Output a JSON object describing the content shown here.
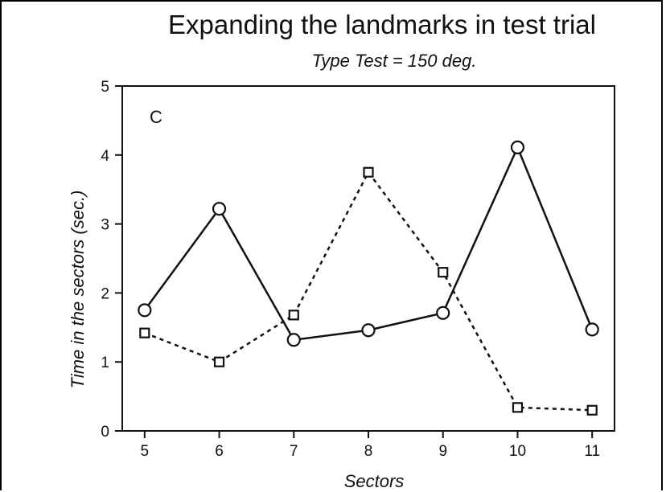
{
  "chart_data": {
    "type": "line",
    "title": "Expanding the landmarks in test trial",
    "subtitle": "Type Test = 150 deg.",
    "panel_label": "C",
    "xlabel": "Sectors",
    "ylabel": "Time in the sectors (sec.)",
    "x": [
      5,
      6,
      7,
      8,
      9,
      10,
      11
    ],
    "xlim": [
      4.7,
      11.3
    ],
    "ylim": [
      0,
      5
    ],
    "xticks": [
      5,
      6,
      7,
      8,
      9,
      10,
      11
    ],
    "yticks": [
      0,
      1,
      2,
      3,
      4,
      5
    ],
    "grid": false,
    "legend": "none",
    "series": [
      {
        "marker": "circle",
        "line": "solid",
        "color": "#111111",
        "values": [
          1.75,
          3.22,
          1.32,
          1.46,
          1.71,
          4.11,
          1.47
        ]
      },
      {
        "marker": "square",
        "line": "dashed",
        "color": "#111111",
        "values": [
          1.42,
          1.0,
          1.68,
          3.75,
          2.3,
          0.34,
          0.3
        ]
      }
    ]
  }
}
